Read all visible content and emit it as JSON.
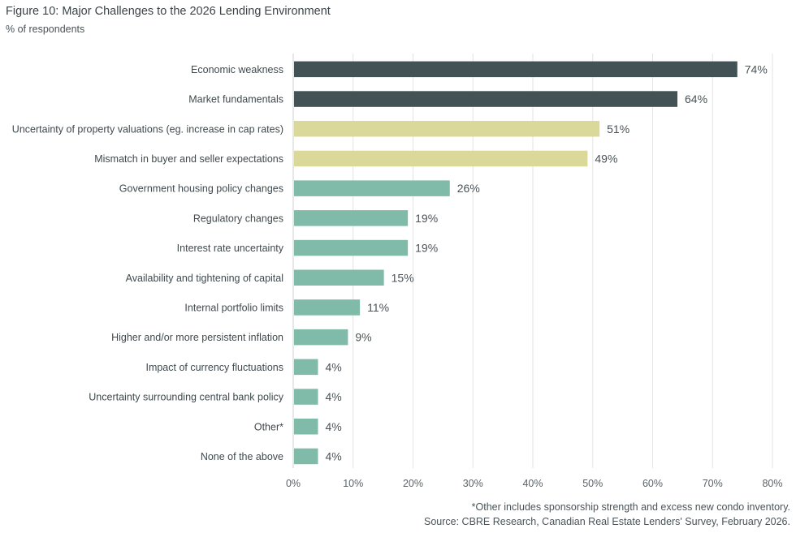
{
  "chart_data": {
    "type": "bar",
    "orientation": "horizontal",
    "title": "Figure 10: Major Challenges to the 2026 Lending Environment",
    "subtitle": "% of respondents",
    "xlabel": "",
    "ylabel": "",
    "xlim": [
      0,
      80
    ],
    "x_ticks": [
      0,
      10,
      20,
      30,
      40,
      50,
      60,
      70,
      80
    ],
    "x_tick_labels": [
      "0%",
      "10%",
      "20%",
      "30%",
      "40%",
      "50%",
      "60%",
      "70%",
      "80%"
    ],
    "grid": true,
    "legend": "none",
    "value_suffix": "%",
    "categories": [
      "Economic weakness",
      "Market fundamentals",
      "Uncertainty of property valuations (eg. increase in cap rates)",
      "Mismatch in buyer and seller expectations",
      "Government housing policy changes",
      "Regulatory changes",
      "Interest rate uncertainty",
      "Availability and tightening of capital",
      "Internal portfolio limits",
      "Higher and/or more persistent inflation",
      "Impact of currency fluctuations",
      "Uncertainty surrounding central bank policy",
      "Other*",
      "None of the above"
    ],
    "values": [
      74,
      64,
      51,
      49,
      26,
      19,
      19,
      15,
      11,
      9,
      4,
      4,
      4,
      4
    ],
    "value_labels": [
      "74%",
      "64%",
      "51%",
      "49%",
      "26%",
      "19%",
      "19%",
      "15%",
      "11%",
      "9%",
      "4%",
      "4%",
      "4%",
      "4%"
    ],
    "bar_groups": [
      "top",
      "top",
      "mid",
      "mid",
      "rest",
      "rest",
      "rest",
      "rest",
      "rest",
      "rest",
      "rest",
      "rest",
      "rest",
      "rest"
    ],
    "colors": {
      "top": "#435254",
      "mid": "#dbd99a",
      "rest": "#80bba9",
      "grid": "#e3e3e3",
      "axis": "#cfcfcf"
    }
  },
  "footnotes": {
    "note": "*Other includes sponsorship strength and excess new condo inventory.",
    "source": "Source: CBRE Research, Canadian Real Estate Lenders' Survey, February 2026."
  }
}
